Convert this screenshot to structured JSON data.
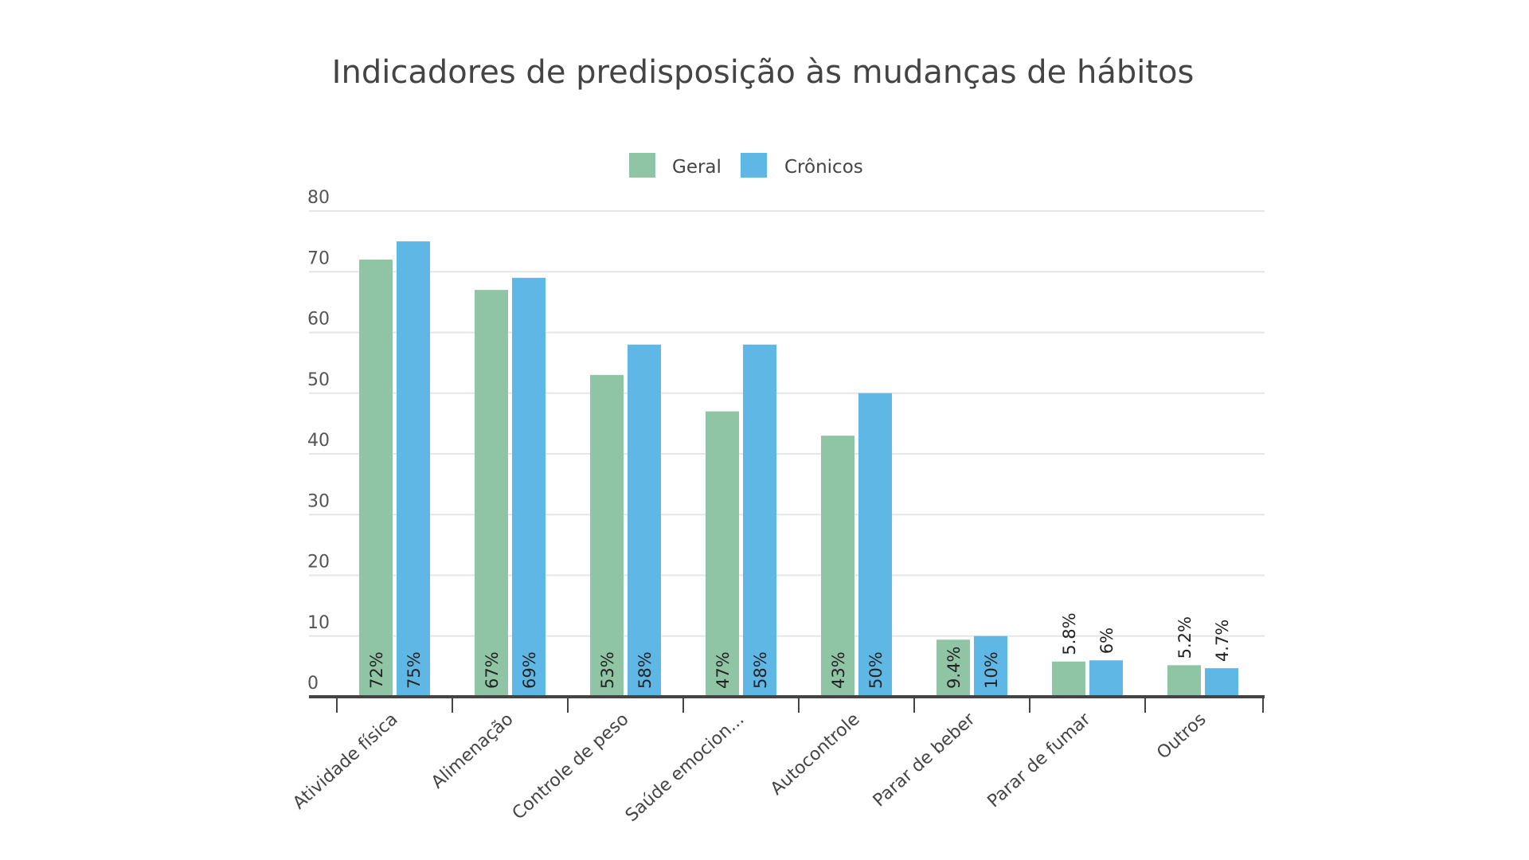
{
  "chart_data": {
    "type": "bar",
    "title": "Indicadores de predisposição às mudanças de hábitos",
    "categories": [
      "Atividade física",
      "Alimenação",
      "Controle de peso",
      "Saúde emocion...",
      "Autocontrole",
      "Parar de beber",
      "Parar de fumar",
      "Outros"
    ],
    "series": [
      {
        "name": "Geral",
        "color": "#8fc4a5",
        "values": [
          72,
          67,
          53,
          47,
          43,
          9.4,
          5.8,
          5.2
        ],
        "labels": [
          "72%",
          "67%",
          "53%",
          "47%",
          "43%",
          "9.4%",
          "5.8%",
          "5.2%"
        ]
      },
      {
        "name": "Crônicos",
        "color": "#5fb7e5",
        "values": [
          75,
          69,
          58,
          58,
          50,
          10,
          6,
          4.7
        ],
        "labels": [
          "75%",
          "69%",
          "58%",
          "58%",
          "50%",
          "10%",
          "6%",
          "4.7%"
        ]
      }
    ],
    "ylim": [
      0,
      80
    ],
    "yticks": [
      0,
      10,
      20,
      30,
      40,
      50,
      60,
      70,
      80
    ],
    "grid": true,
    "legend": "top-center",
    "xlabel": "",
    "ylabel": ""
  }
}
